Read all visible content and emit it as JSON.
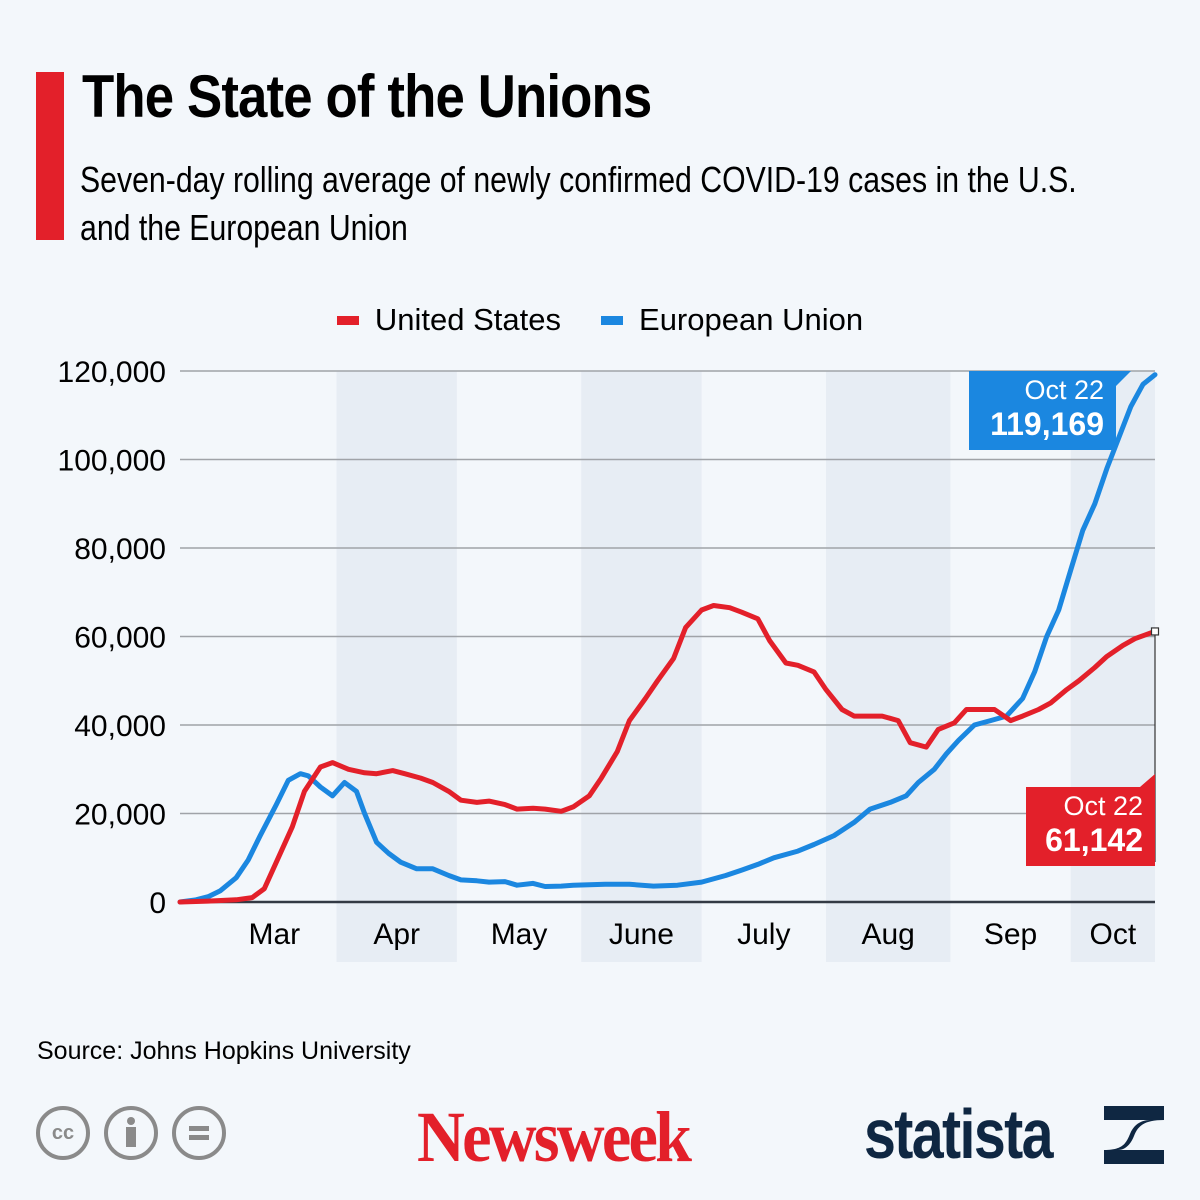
{
  "header": {
    "title": "The State of the Unions",
    "subtitle": "Seven-day rolling average of newly confirmed COVID-19 cases in the U.S. and the European Union",
    "accent_color": "#e3202a"
  },
  "footer": {
    "source": "Source: Johns Hopkins University",
    "license_icons": [
      "cc-icon",
      "attribution-icon",
      "no-derivatives-icon"
    ],
    "license_glyphs": [
      "cc",
      "i",
      "="
    ],
    "publisher": "Newsweek",
    "provider": "statista"
  },
  "chart_data": {
    "type": "line",
    "title": "The State of the Unions",
    "subtitle": "Seven-day rolling average of newly confirmed COVID-19 cases in the U.S. and the European Union",
    "xlabel": "",
    "ylabel": "",
    "ylim": [
      0,
      120000
    ],
    "yticks": [
      0,
      20000,
      40000,
      60000,
      80000,
      100000,
      120000
    ],
    "ytick_labels": [
      "0",
      "20,000",
      "40,000",
      "60,000",
      "80,000",
      "100,000",
      "120,000"
    ],
    "x_unit": "days since Feb 22, 2020",
    "xlim": [
      0,
      243
    ],
    "month_labels": [
      {
        "label": "Mar",
        "start": 8,
        "end": 39,
        "shaded": false
      },
      {
        "label": "Apr",
        "start": 39,
        "end": 69,
        "shaded": true
      },
      {
        "label": "May",
        "start": 69,
        "end": 100,
        "shaded": false
      },
      {
        "label": "June",
        "start": 100,
        "end": 130,
        "shaded": true
      },
      {
        "label": "July",
        "start": 130,
        "end": 161,
        "shaded": false
      },
      {
        "label": "Aug",
        "start": 161,
        "end": 192,
        "shaded": true
      },
      {
        "label": "Sep",
        "start": 192,
        "end": 222,
        "shaded": false
      },
      {
        "label": "Oct",
        "start": 222,
        "end": 243,
        "shaded": true
      }
    ],
    "grid": true,
    "legend_position": "top-center",
    "series": [
      {
        "name": "United States",
        "color": "#e3202a",
        "x": [
          0,
          7,
          14,
          18,
          21,
          24,
          28,
          31,
          35,
          38,
          42,
          46,
          49,
          53,
          56,
          60,
          63,
          67,
          70,
          74,
          77,
          81,
          84,
          88,
          91,
          95,
          98,
          102,
          105,
          109,
          112,
          116,
          119,
          123,
          126,
          130,
          133,
          137,
          140,
          144,
          147,
          151,
          154,
          158,
          161,
          165,
          168,
          172,
          175,
          179,
          182,
          186,
          189,
          193,
          196,
          199,
          203,
          207,
          210,
          214,
          217,
          221,
          224,
          228,
          231,
          235,
          238,
          243
        ],
        "values": [
          0,
          200,
          500,
          1000,
          3000,
          9000,
          17000,
          25000,
          30500,
          31500,
          30000,
          29200,
          29000,
          29700,
          29000,
          28000,
          27000,
          25000,
          23000,
          22500,
          22800,
          22000,
          21000,
          21200,
          21000,
          20500,
          21500,
          24000,
          28000,
          34000,
          41000,
          46000,
          50000,
          55000,
          62000,
          66000,
          67000,
          66500,
          65500,
          64000,
          59000,
          54000,
          53500,
          52000,
          48000,
          43500,
          42000,
          42000,
          42000,
          41000,
          36000,
          35000,
          39000,
          40500,
          43500,
          43500,
          43500,
          41000,
          42000,
          43500,
          45000,
          48000,
          50000,
          53000,
          55500,
          58000,
          59500,
          61142
        ]
      },
      {
        "name": "European Union",
        "color": "#1b87e0",
        "x": [
          0,
          4,
          7,
          10,
          14,
          17,
          20,
          24,
          27,
          30,
          32,
          35,
          38,
          41,
          44,
          46,
          49,
          52,
          55,
          59,
          63,
          67,
          70,
          74,
          77,
          81,
          84,
          88,
          91,
          95,
          98,
          102,
          106,
          112,
          118,
          124,
          130,
          136,
          140,
          144,
          148,
          154,
          158,
          163,
          168,
          172,
          177,
          181,
          184,
          188,
          191,
          194,
          198,
          202,
          206,
          210,
          213,
          216,
          219,
          222,
          225,
          228,
          231,
          234,
          237,
          240,
          243
        ],
        "values": [
          0,
          500,
          1200,
          2500,
          5500,
          9500,
          15000,
          22000,
          27500,
          29000,
          28500,
          26000,
          24000,
          27000,
          25000,
          20000,
          13500,
          11000,
          9000,
          7500,
          7500,
          6000,
          5000,
          4800,
          4500,
          4600,
          3800,
          4200,
          3500,
          3600,
          3800,
          3900,
          4000,
          4000,
          3600,
          3800,
          4500,
          6000,
          7200,
          8500,
          10000,
          11500,
          13000,
          15000,
          18000,
          21000,
          22500,
          24000,
          27000,
          30000,
          33500,
          36500,
          40000,
          41000,
          42000,
          46000,
          52000,
          60000,
          66000,
          75000,
          84000,
          90000,
          98000,
          105000,
          112000,
          117000,
          119169
        ]
      }
    ],
    "annotations": [
      {
        "series": "European Union",
        "date_label": "Oct 22",
        "value_label": "119,169",
        "x": 243,
        "y": 119169
      },
      {
        "series": "United States",
        "date_label": "Oct 22",
        "value_label": "61,142",
        "x": 243,
        "y": 61142
      }
    ]
  }
}
